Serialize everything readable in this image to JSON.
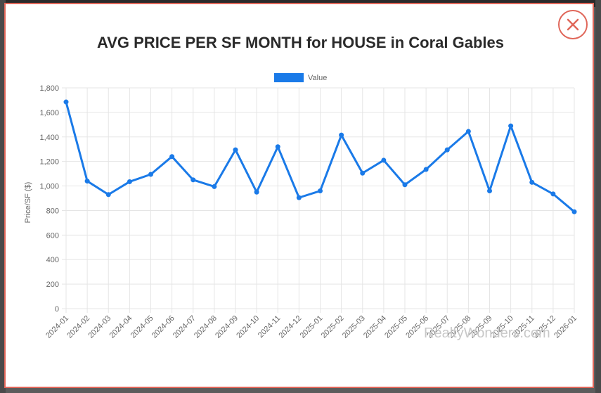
{
  "modal": {
    "close_icon": "close-icon"
  },
  "colors": {
    "accent": "#e0675a",
    "series": "#1a7ae8",
    "grid": "#e5e5e5"
  },
  "watermark": "RealtyWonders.com",
  "chart_data": {
    "type": "line",
    "title": "AVG PRICE PER SF MONTH for HOUSE in Coral Gables",
    "xlabel": "",
    "ylabel": "Price/SF ($)",
    "ylim": [
      0,
      1800
    ],
    "yticks": [
      0,
      200,
      400,
      600,
      800,
      1000,
      1200,
      1400,
      1600,
      1800
    ],
    "grid": true,
    "legend_position": "top",
    "categories": [
      "2024-01",
      "2024-02",
      "2024-03",
      "2024-04",
      "2024-05",
      "2024-06",
      "2024-07",
      "2024-08",
      "2024-09",
      "2024-10",
      "2024-11",
      "2024-12",
      "2025-01",
      "2025-02",
      "2025-03",
      "2025-04",
      "2025-05",
      "2025-06",
      "2025-07",
      "2025-08",
      "2025-09",
      "2025-10",
      "2025-11",
      "2025-12",
      "2026-01"
    ],
    "series": [
      {
        "name": "Value",
        "values": [
          1685,
          1040,
          930,
          1035,
          1095,
          1240,
          1050,
          995,
          1295,
          950,
          1320,
          905,
          960,
          1415,
          1105,
          1210,
          1010,
          1135,
          1295,
          1445,
          960,
          1490,
          1030,
          935,
          790
        ]
      }
    ]
  }
}
